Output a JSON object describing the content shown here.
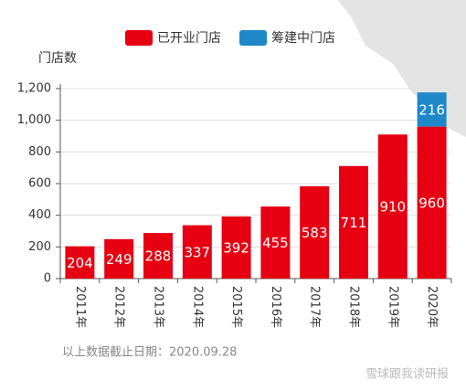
{
  "chart_data": {
    "type": "stacked_bar",
    "y_label": "门店数",
    "categories": [
      "2011年",
      "2012年",
      "2013年",
      "2014年",
      "2015年",
      "2016年",
      "2017年",
      "2018年",
      "2019年",
      "2020年"
    ],
    "series": [
      {
        "name": "已开业门店",
        "color": "#e60012",
        "values": [
          204,
          249,
          288,
          337,
          392,
          455,
          583,
          711,
          910,
          960
        ]
      },
      {
        "name": "筹建中门店",
        "color": "#1e88c8",
        "values": [
          null,
          null,
          null,
          null,
          null,
          null,
          null,
          null,
          null,
          216
        ]
      }
    ],
    "ylim": [
      0,
      1200
    ],
    "yticks": [
      0,
      200,
      400,
      600,
      800,
      {
        "value": 1000,
        "label": "1,000"
      },
      {
        "value": 1200,
        "label": "1,200"
      }
    ],
    "grid": true,
    "footnote": "以上数据截止日期：2020.09.28",
    "watermark": "雪球跟我读研报"
  }
}
